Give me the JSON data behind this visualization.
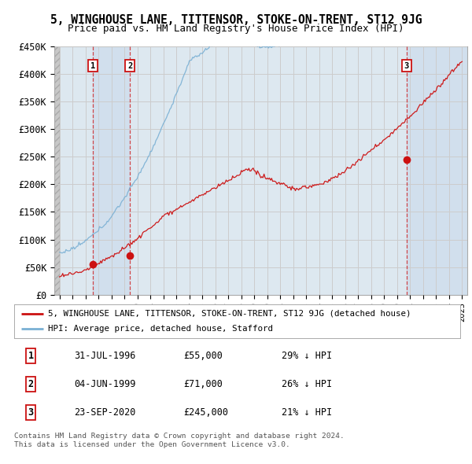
{
  "title": "5, WINGHOUSE LANE, TITTENSOR, STOKE-ON-TRENT, ST12 9JG",
  "subtitle": "Price paid vs. HM Land Registry's House Price Index (HPI)",
  "ylim": [
    0,
    450000
  ],
  "yticks": [
    0,
    50000,
    100000,
    150000,
    200000,
    250000,
    300000,
    350000,
    400000,
    450000
  ],
  "ytick_labels": [
    "£0",
    "£50K",
    "£100K",
    "£150K",
    "£200K",
    "£250K",
    "£300K",
    "£350K",
    "£400K",
    "£450K"
  ],
  "xlim_start": 1993.6,
  "xlim_end": 2025.4,
  "xticks": [
    1994,
    1995,
    1996,
    1997,
    1998,
    1999,
    2000,
    2001,
    2002,
    2003,
    2004,
    2005,
    2006,
    2007,
    2008,
    2009,
    2010,
    2011,
    2012,
    2013,
    2014,
    2015,
    2016,
    2017,
    2018,
    2019,
    2020,
    2021,
    2022,
    2023,
    2024,
    2025
  ],
  "sale_dates": [
    1996.58,
    1999.42,
    2020.73
  ],
  "sale_prices": [
    55000,
    71000,
    245000
  ],
  "sale_labels": [
    "1",
    "2",
    "3"
  ],
  "legend_red": "5, WINGHOUSE LANE, TITTENSOR, STOKE-ON-TRENT, ST12 9JG (detached house)",
  "legend_blue": "HPI: Average price, detached house, Stafford",
  "table_rows": [
    [
      "1",
      "31-JUL-1996",
      "£55,000",
      "29% ↓ HPI"
    ],
    [
      "2",
      "04-JUN-1999",
      "£71,000",
      "26% ↓ HPI"
    ],
    [
      "3",
      "23-SEP-2020",
      "£245,000",
      "21% ↓ HPI"
    ]
  ],
  "footnote1": "Contains HM Land Registry data © Crown copyright and database right 2024.",
  "footnote2": "This data is licensed under the Open Government Licence v3.0.",
  "grid_color": "#cccccc",
  "bg_color": "#dde8f0",
  "band_color": "#dde8f4",
  "hatch_color": "#c8c8c8"
}
